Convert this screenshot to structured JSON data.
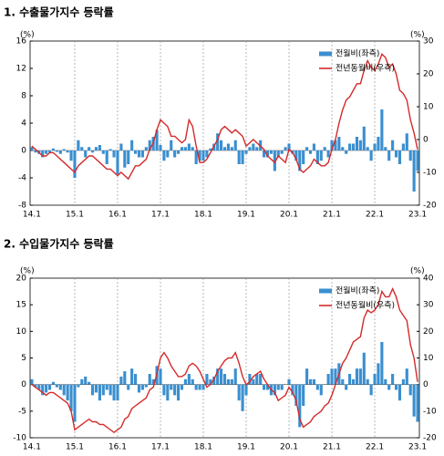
{
  "chart_data": [
    {
      "type": "combo",
      "title": "1. 수출물가지수 등락률",
      "y_unit": "(%)",
      "y2_unit": "(%)",
      "categories": [
        "14.1",
        null,
        null,
        null,
        null,
        null,
        null,
        null,
        null,
        null,
        null,
        null,
        "15.1",
        null,
        null,
        null,
        null,
        null,
        null,
        null,
        null,
        null,
        null,
        null,
        "16.1",
        null,
        null,
        null,
        null,
        null,
        null,
        null,
        null,
        null,
        null,
        null,
        "17.1",
        null,
        null,
        null,
        null,
        null,
        null,
        null,
        null,
        null,
        null,
        null,
        "18.1",
        null,
        null,
        null,
        null,
        null,
        null,
        null,
        null,
        null,
        null,
        null,
        "19.1",
        null,
        null,
        null,
        null,
        null,
        null,
        null,
        null,
        null,
        null,
        null,
        "20.1",
        null,
        null,
        null,
        null,
        null,
        null,
        null,
        null,
        null,
        null,
        null,
        "21.1",
        null,
        null,
        null,
        null,
        null,
        null,
        null,
        null,
        null,
        null,
        null,
        "22.1",
        null,
        null,
        null,
        null,
        null,
        null,
        null,
        null,
        null,
        null,
        null,
        "23.1"
      ],
      "ylim": [
        -8,
        16
      ],
      "yticks": [
        -8,
        -4,
        0,
        4,
        8,
        12,
        16
      ],
      "y2lim": [
        -20,
        30
      ],
      "y2ticks": [
        -20,
        -10,
        0,
        10,
        20,
        30
      ],
      "grid": true,
      "legend": "upper right",
      "series": [
        {
          "name": "전월비(좌측)",
          "type": "bar",
          "color": "#3a8fd0",
          "values": [
            0.5,
            -0.3,
            -0.5,
            -1,
            -0.5,
            -0.3,
            0.3,
            -0.2,
            -0.5,
            0.2,
            -0.3,
            -1.5,
            -4,
            1.5,
            0.5,
            -1,
            0.5,
            -0.3,
            0.5,
            0.8,
            -0.5,
            -2,
            0.2,
            -1,
            -3.5,
            1,
            -2.5,
            -2,
            1.5,
            -0.5,
            -1,
            -1,
            0.5,
            1.5,
            2,
            3,
            0.8,
            -1.5,
            -1,
            1.5,
            -1,
            -0.5,
            0.5,
            0.5,
            1,
            0.5,
            -2,
            -1.5,
            -1.5,
            -1,
            0.3,
            1,
            2.5,
            1.5,
            0.5,
            1,
            0.5,
            1.5,
            -2,
            -2,
            -0.5,
            0.5,
            1,
            0.5,
            1.5,
            -1,
            -1,
            -0.5,
            -3,
            -1,
            -0.5,
            0.5,
            1,
            -0.5,
            -1.5,
            -3,
            -2,
            0.5,
            -0.5,
            1,
            -2,
            -1.5,
            0.5,
            -1,
            1.5,
            1.5,
            2,
            0.5,
            -0.5,
            1,
            1,
            2,
            1.5,
            3.5,
            0.5,
            -1.5,
            1,
            2,
            6,
            0.5,
            -1.5,
            1.5,
            -1,
            -2,
            1,
            2.5,
            -1.5,
            -6,
            -3
          ]
        },
        {
          "name": "전년동월비(우측)",
          "type": "line",
          "axis": "y2",
          "color": "#d42a2a",
          "values": [
            -2,
            -3,
            -4,
            -5,
            -5,
            -4,
            -4,
            -5,
            -6,
            -7,
            -8,
            -9,
            -10,
            -8,
            -7,
            -6,
            -5,
            -5,
            -6,
            -7,
            -8,
            -9,
            -9,
            -10,
            -11,
            -10,
            -11,
            -12,
            -10,
            -8,
            -8,
            -7,
            -6,
            -3,
            -1,
            3,
            6,
            5,
            4,
            1,
            1,
            0,
            -1,
            0,
            6,
            4,
            -2,
            -7,
            -7,
            -6,
            -4,
            -2,
            0,
            3,
            4,
            3,
            2,
            3,
            2,
            1,
            -2,
            -1,
            0,
            -1,
            -2,
            -3,
            -5,
            -6,
            -7,
            -5,
            -6,
            -7,
            -3,
            -4,
            -6,
            -9,
            -10,
            -9,
            -8,
            -6,
            -7,
            -8,
            -8,
            -7,
            -3,
            0,
            5,
            9,
            12,
            13,
            15,
            17,
            17,
            21,
            24,
            22,
            21,
            23,
            26,
            25,
            22,
            23,
            20,
            15,
            14,
            12,
            6,
            2,
            -3
          ]
        }
      ]
    },
    {
      "type": "combo",
      "title": "2. 수입물가지수 등락률",
      "y_unit": "(%)",
      "y2_unit": "(%)",
      "categories": [
        "14.1",
        null,
        null,
        null,
        null,
        null,
        null,
        null,
        null,
        null,
        null,
        null,
        "15.1",
        null,
        null,
        null,
        null,
        null,
        null,
        null,
        null,
        null,
        null,
        null,
        "16.1",
        null,
        null,
        null,
        null,
        null,
        null,
        null,
        null,
        null,
        null,
        null,
        "17.1",
        null,
        null,
        null,
        null,
        null,
        null,
        null,
        null,
        null,
        null,
        null,
        "18.1",
        null,
        null,
        null,
        null,
        null,
        null,
        null,
        null,
        null,
        null,
        null,
        "19.1",
        null,
        null,
        null,
        null,
        null,
        null,
        null,
        null,
        null,
        null,
        null,
        "20.1",
        null,
        null,
        null,
        null,
        null,
        null,
        null,
        null,
        null,
        null,
        null,
        "21.1",
        null,
        null,
        null,
        null,
        null,
        null,
        null,
        null,
        null,
        null,
        null,
        "22.1",
        null,
        null,
        null,
        null,
        null,
        null,
        null,
        null,
        null,
        null,
        null,
        "23.1"
      ],
      "ylim": [
        -10,
        20
      ],
      "yticks": [
        -10,
        -5,
        0,
        5,
        10,
        15,
        20
      ],
      "y2lim": [
        -20,
        40
      ],
      "y2ticks": [
        -20,
        -10,
        0,
        10,
        20,
        30,
        40
      ],
      "grid": true,
      "legend": "upper right",
      "series": [
        {
          "name": "전월비(좌측)",
          "type": "bar",
          "color": "#3a8fd0",
          "values": [
            1,
            -0.5,
            -1,
            -2,
            -1.5,
            -1,
            0.5,
            -0.5,
            -1,
            -2,
            -3,
            -5,
            -7,
            -0.5,
            1,
            1.5,
            0.5,
            -2,
            -1.5,
            -3,
            -2,
            -1,
            -2,
            -3,
            -3,
            1.5,
            2.5,
            -1,
            3,
            2,
            -1.5,
            -1,
            -0.5,
            2,
            1,
            3.5,
            3,
            -2,
            -3,
            -1,
            -2,
            -3,
            -1,
            1,
            2,
            1,
            -1,
            -1,
            -1,
            2,
            1,
            1.5,
            3,
            3,
            2,
            1,
            1,
            3,
            -3,
            -5,
            -2,
            2,
            1,
            2,
            2,
            -1,
            -1,
            -2,
            -2,
            -1,
            -1,
            0,
            1,
            -2,
            -4,
            -8,
            -4,
            3,
            1,
            1,
            -1,
            -2,
            0,
            2,
            3,
            3,
            4,
            1,
            -1,
            2,
            1,
            3,
            3,
            6,
            1,
            -2,
            2,
            4,
            8,
            1,
            -1,
            2,
            -1,
            -3,
            1,
            3,
            -2,
            -6,
            -7
          ]
        },
        {
          "name": "전년동월비(우측)",
          "type": "line",
          "axis": "y2",
          "color": "#d42a2a",
          "values": [
            0,
            -1,
            -2,
            -3,
            -4,
            -3,
            -3,
            -4,
            -5,
            -6,
            -7,
            -10,
            -17,
            -16,
            -15,
            -14,
            -13,
            -14,
            -14,
            -15,
            -15,
            -16,
            -17,
            -18,
            -17,
            -16,
            -13,
            -12,
            -9,
            -8,
            -7,
            -6,
            -5,
            -2,
            -1,
            4,
            10,
            12,
            10,
            7,
            5,
            3,
            3,
            4,
            7,
            8,
            7,
            5,
            2,
            -1,
            0,
            2,
            5,
            7,
            9,
            10,
            10,
            12,
            8,
            3,
            0,
            1,
            3,
            4,
            5,
            2,
            0,
            -2,
            -3,
            -6,
            -5,
            -4,
            -1,
            -3,
            -6,
            -13,
            -16,
            -15,
            -14,
            -12,
            -11,
            -10,
            -8,
            -7,
            -4,
            0,
            4,
            8,
            10,
            13,
            16,
            17,
            18,
            25,
            28,
            27,
            28,
            30,
            35,
            33,
            33,
            36,
            33,
            28,
            26,
            24,
            15,
            10,
            1
          ]
        }
      ]
    }
  ]
}
